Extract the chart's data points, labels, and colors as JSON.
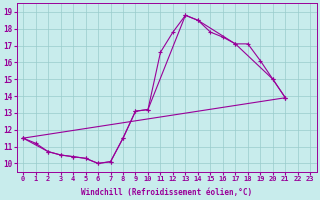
{
  "xlabel": "Windchill (Refroidissement éolien,°C)",
  "background_color": "#c8ecec",
  "line_color": "#990099",
  "grid_color": "#99cccc",
  "xlim": [
    -0.5,
    23.5
  ],
  "ylim": [
    9.5,
    19.5
  ],
  "xticks": [
    0,
    1,
    2,
    3,
    4,
    5,
    6,
    7,
    8,
    9,
    10,
    11,
    12,
    13,
    14,
    15,
    16,
    17,
    18,
    19,
    20,
    21,
    22,
    23
  ],
  "yticks": [
    10,
    11,
    12,
    13,
    14,
    15,
    16,
    17,
    18,
    19
  ],
  "series": [
    {
      "x": [
        0,
        1,
        2,
        3,
        4,
        5,
        6,
        7,
        8,
        9,
        10,
        11,
        12,
        13,
        14,
        15,
        16,
        17,
        18,
        19,
        20,
        21
      ],
      "y": [
        11.5,
        11.2,
        10.7,
        10.5,
        10.4,
        10.3,
        10.0,
        10.1,
        11.5,
        13.1,
        13.2,
        16.6,
        17.8,
        18.8,
        18.5,
        17.8,
        17.5,
        17.1,
        17.1,
        16.1,
        15.0,
        13.9
      ]
    },
    {
      "x": [
        0,
        21
      ],
      "y": [
        11.5,
        13.9
      ]
    },
    {
      "x": [
        0,
        2,
        3,
        4,
        5,
        6,
        7,
        8,
        9,
        10,
        13,
        14,
        17,
        20,
        21
      ],
      "y": [
        11.5,
        10.7,
        10.5,
        10.4,
        10.3,
        10.0,
        10.1,
        11.5,
        13.1,
        13.2,
        18.8,
        18.5,
        17.1,
        15.0,
        13.9
      ]
    }
  ]
}
